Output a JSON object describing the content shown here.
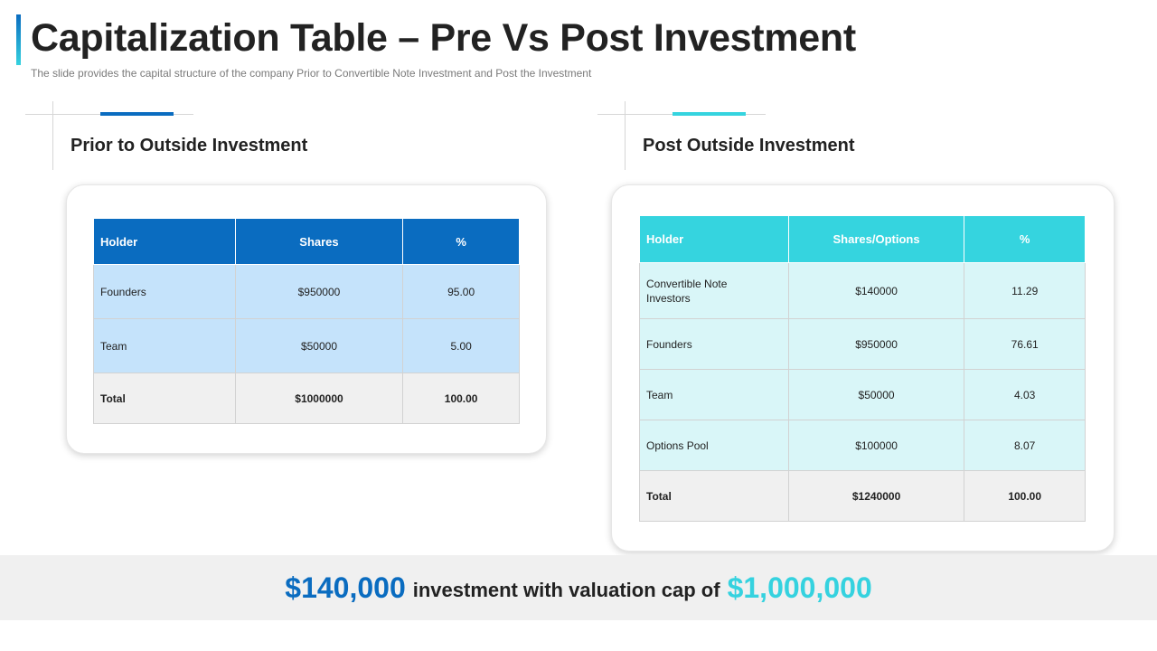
{
  "header": {
    "title": "Capitalization Table – Pre Vs Post Investment",
    "subtitle": "The slide provides the capital structure of the company Prior to Convertible Note Investment and Post the Investment"
  },
  "colors": {
    "blue_accent": "#0a6cc0",
    "cyan_accent": "#35d4df",
    "light_blue_row": "#c5e3fb",
    "light_cyan_row": "#d9f6f8"
  },
  "pre": {
    "heading": "Prior to Outside Investment",
    "columns": [
      "Holder",
      "Shares",
      "%"
    ],
    "rows": [
      [
        "Founders",
        "$950000",
        "95.00"
      ],
      [
        "Team",
        "$50000",
        "5.00"
      ]
    ],
    "total": [
      "Total",
      "$1000000",
      "100.00"
    ]
  },
  "post": {
    "heading": "Post Outside Investment",
    "columns": [
      "Holder",
      "Shares/Options",
      "%"
    ],
    "rows": [
      [
        "Convertible  Note Investors",
        "$140000",
        "11.29"
      ],
      [
        "Founders",
        "$950000",
        "76.61"
      ],
      [
        "Team",
        "$50000",
        "4.03"
      ],
      [
        "Options Pool",
        "$100000",
        "8.07"
      ]
    ],
    "total": [
      "Total",
      "$1240000",
      "100.00"
    ]
  },
  "footer": {
    "investment": "$140,000",
    "text": "investment with valuation cap of",
    "cap": "$1,000,000"
  }
}
